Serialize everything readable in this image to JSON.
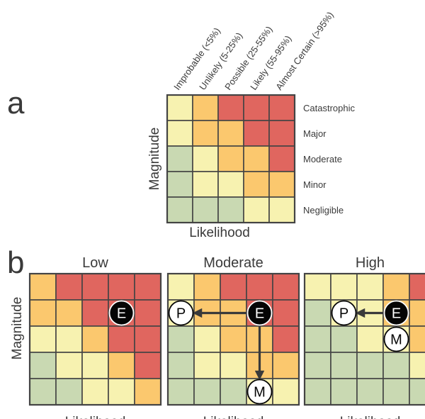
{
  "colors": {
    "green": "#c9d9b2",
    "light_yellow": "#f7f2b0",
    "orange": "#fbc86e",
    "red": "#e0665f",
    "grid_line": "#444444"
  },
  "panel_a": {
    "letter": "a",
    "x_title": "Likelihood",
    "y_title": "Magnitude",
    "columns": [
      "Improbable (<5%)",
      "Unlikely (5-25%)",
      "Possible (25-55%)",
      "Likely (55-95%)",
      "Almost Certain (>95%)"
    ],
    "rows": [
      "Catastrophic",
      "Major",
      "Moderate",
      "Minor",
      "Negligible"
    ],
    "cells": [
      [
        "Y",
        "O",
        "R",
        "R",
        "R"
      ],
      [
        "Y",
        "O",
        "O",
        "R",
        "R"
      ],
      [
        "G",
        "Y",
        "O",
        "O",
        "R"
      ],
      [
        "G",
        "Y",
        "Y",
        "O",
        "O"
      ],
      [
        "G",
        "G",
        "G",
        "Y",
        "Y"
      ]
    ]
  },
  "panel_b": {
    "letter": "b",
    "y_title": "Magnitude",
    "matrices": [
      {
        "title": "Low",
        "x_title": "Likelihood",
        "cells": [
          [
            "O",
            "R",
            "R",
            "R",
            "R"
          ],
          [
            "O",
            "O",
            "R",
            "R",
            "R"
          ],
          [
            "Y",
            "Y",
            "O",
            "R",
            "R"
          ],
          [
            "G",
            "Y",
            "Y",
            "O",
            "R"
          ],
          [
            "G",
            "G",
            "Y",
            "Y",
            "O"
          ]
        ],
        "markers": [
          {
            "label": "E",
            "style": "filled",
            "row": 1,
            "col": 3
          }
        ],
        "arrows": []
      },
      {
        "title": "Moderate",
        "x_title": "Likelihood",
        "cells": [
          [
            "Y",
            "O",
            "R",
            "R",
            "R"
          ],
          [
            "Y",
            "O",
            "O",
            "R",
            "R"
          ],
          [
            "G",
            "Y",
            "O",
            "O",
            "R"
          ],
          [
            "G",
            "Y",
            "Y",
            "O",
            "O"
          ],
          [
            "G",
            "G",
            "G",
            "Y",
            "Y"
          ]
        ],
        "markers": [
          {
            "label": "E",
            "style": "filled",
            "row": 1,
            "col": 3
          },
          {
            "label": "P",
            "style": "outline",
            "row": 1,
            "col": 0
          },
          {
            "label": "M",
            "style": "outline",
            "row": 4,
            "col": 3
          }
        ],
        "arrows": [
          {
            "from": [
              1,
              3
            ],
            "to": [
              1,
              0
            ]
          },
          {
            "from": [
              1,
              3
            ],
            "to": [
              4,
              3
            ]
          }
        ]
      },
      {
        "title": "High",
        "x_title": "Likelihood",
        "cells": [
          [
            "Y",
            "Y",
            "Y",
            "O",
            "R"
          ],
          [
            "G",
            "Y",
            "Y",
            "O",
            "O"
          ],
          [
            "G",
            "G",
            "Y",
            "Y",
            "O"
          ],
          [
            "G",
            "G",
            "G",
            "G",
            "Y"
          ],
          [
            "G",
            "G",
            "G",
            "G",
            "G"
          ]
        ],
        "markers": [
          {
            "label": "E",
            "style": "filled",
            "row": 1,
            "col": 3
          },
          {
            "label": "P",
            "style": "outline",
            "row": 1,
            "col": 1
          },
          {
            "label": "M",
            "style": "outline",
            "row": 2,
            "col": 3
          }
        ],
        "arrows": [
          {
            "from": [
              1,
              3
            ],
            "to": [
              1,
              1
            ]
          },
          {
            "from": [
              1,
              3
            ],
            "to": [
              2,
              3
            ]
          }
        ]
      }
    ]
  }
}
